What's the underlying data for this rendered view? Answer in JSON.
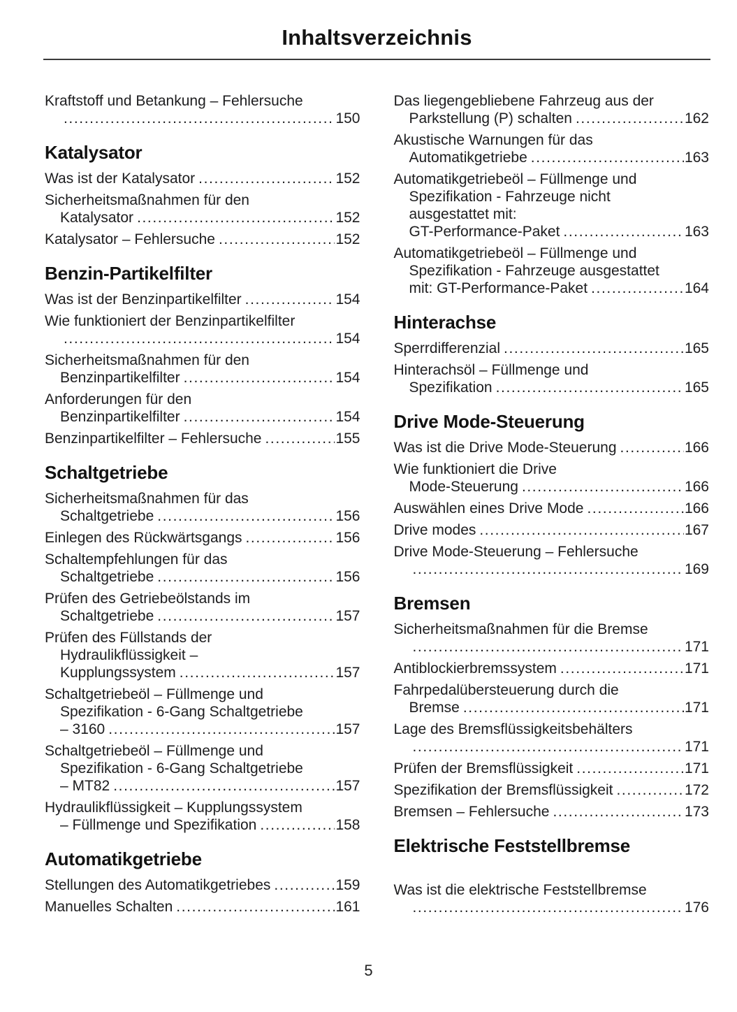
{
  "page": {
    "title": "Inhaltsverzeichnis",
    "footer_page_number": "5"
  },
  "colors": {
    "text": "#1d1d1f",
    "rule": "#3a3a3a"
  },
  "toc": {
    "columns": [
      {
        "blocks": [
          {
            "type": "entry",
            "lines": [
              "Kraftstoff und Betankung – Fehlersuche",
              ""
            ],
            "page": "150"
          },
          {
            "type": "header",
            "text": "Katalysator"
          },
          {
            "type": "entry",
            "lines": [
              "Was ist der Katalysator"
            ],
            "page": "152"
          },
          {
            "type": "entry",
            "lines": [
              "Sicherheitsmaßnahmen für den",
              "Katalysator"
            ],
            "page": "152"
          },
          {
            "type": "entry",
            "lines": [
              "Katalysator – Fehlersuche"
            ],
            "page": "152"
          },
          {
            "type": "header",
            "text": "Benzin-Partikelfilter"
          },
          {
            "type": "entry",
            "lines": [
              "Was ist der Benzinpartikelfilter"
            ],
            "page": "154"
          },
          {
            "type": "entry",
            "lines": [
              "Wie funktioniert der Benzinpartikelfilter",
              ""
            ],
            "page": "154"
          },
          {
            "type": "entry",
            "lines": [
              "Sicherheitsmaßnahmen für den",
              "Benzinpartikelfilter"
            ],
            "page": "154"
          },
          {
            "type": "entry",
            "lines": [
              "Anforderungen für den",
              "Benzinpartikelfilter"
            ],
            "page": "154"
          },
          {
            "type": "entry",
            "lines": [
              "Benzinpartikelfilter – Fehlersuche"
            ],
            "page": "155"
          },
          {
            "type": "header",
            "text": "Schaltgetriebe"
          },
          {
            "type": "entry",
            "lines": [
              "Sicherheitsmaßnahmen für das",
              "Schaltgetriebe"
            ],
            "page": "156"
          },
          {
            "type": "entry",
            "lines": [
              "Einlegen des Rückwärtsgangs"
            ],
            "page": "156"
          },
          {
            "type": "entry",
            "lines": [
              "Schaltempfehlungen für das",
              "Schaltgetriebe"
            ],
            "page": "156"
          },
          {
            "type": "entry",
            "lines": [
              "Prüfen des Getriebeölstands im",
              "Schaltgetriebe"
            ],
            "page": "157"
          },
          {
            "type": "entry",
            "lines": [
              "Prüfen des Füllstands der",
              "Hydraulikflüssigkeit –",
              "Kupplungssystem"
            ],
            "page": "157"
          },
          {
            "type": "entry",
            "lines": [
              "Schaltgetriebeöl – Füllmenge und",
              "Spezifikation - 6-Gang Schaltgetriebe",
              "– 3160"
            ],
            "page": "157"
          },
          {
            "type": "entry",
            "lines": [
              "Schaltgetriebeöl – Füllmenge und",
              "Spezifikation - 6-Gang Schaltgetriebe",
              "– MT82"
            ],
            "page": "157"
          },
          {
            "type": "entry",
            "lines": [
              "Hydraulikflüssigkeit – Kupplungssystem",
              "– Füllmenge und Spezifikation"
            ],
            "page": "158"
          },
          {
            "type": "header",
            "text": "Automatikgetriebe"
          },
          {
            "type": "entry",
            "lines": [
              "Stellungen des Automatikgetriebes"
            ],
            "page": "159"
          },
          {
            "type": "entry",
            "lines": [
              "Manuelles Schalten"
            ],
            "page": "161"
          }
        ]
      },
      {
        "blocks": [
          {
            "type": "entry",
            "lines": [
              "Das liegengebliebene Fahrzeug aus der",
              "Parkstellung (P) schalten"
            ],
            "page": "162"
          },
          {
            "type": "entry",
            "lines": [
              "Akustische Warnungen für das",
              "Automatikgetriebe"
            ],
            "page": "163"
          },
          {
            "type": "entry",
            "lines": [
              "Automatikgetriebeöl – Füllmenge und",
              "Spezifikation - Fahrzeuge nicht",
              "ausgestattet mit:",
              "GT-Performance-Paket"
            ],
            "page": "163"
          },
          {
            "type": "entry",
            "lines": [
              "Automatikgetriebeöl – Füllmenge und",
              "Spezifikation - Fahrzeuge ausgestattet",
              "mit: GT-Performance-Paket"
            ],
            "page": "164"
          },
          {
            "type": "header",
            "text": "Hinterachse"
          },
          {
            "type": "entry",
            "lines": [
              "Sperrdifferenzial"
            ],
            "page": "165"
          },
          {
            "type": "entry",
            "lines": [
              "Hinterachsöl – Füllmenge und",
              "Spezifikation"
            ],
            "page": "165"
          },
          {
            "type": "header",
            "text": "Drive Mode-Steuerung"
          },
          {
            "type": "entry",
            "lines": [
              "Was ist die Drive Mode-Steuerung"
            ],
            "page": "166"
          },
          {
            "type": "entry",
            "lines": [
              "Wie funktioniert die Drive",
              "Mode-Steuerung"
            ],
            "page": "166"
          },
          {
            "type": "entry",
            "lines": [
              "Auswählen eines Drive Mode"
            ],
            "page": "166"
          },
          {
            "type": "entry",
            "lines": [
              "Drive modes"
            ],
            "page": "167"
          },
          {
            "type": "entry",
            "lines": [
              "Drive Mode-Steuerung – Fehlersuche",
              ""
            ],
            "page": "169"
          },
          {
            "type": "header",
            "text": "Bremsen"
          },
          {
            "type": "entry",
            "lines": [
              "Sicherheitsmaßnahmen für die Bremse",
              ""
            ],
            "page": "171"
          },
          {
            "type": "entry",
            "lines": [
              "Antiblockierbremssystem"
            ],
            "page": "171"
          },
          {
            "type": "entry",
            "lines": [
              "Fahrpedalübersteuerung durch die",
              "Bremse"
            ],
            "page": "171"
          },
          {
            "type": "entry",
            "lines": [
              "Lage des Bremsflüssigkeitsbehälters",
              ""
            ],
            "page": "171"
          },
          {
            "type": "entry",
            "lines": [
              "Prüfen der Bremsflüssigkeit"
            ],
            "page": "171"
          },
          {
            "type": "entry",
            "lines": [
              "Spezifikation der Bremsflüssigkeit"
            ],
            "page": "172"
          },
          {
            "type": "entry",
            "lines": [
              "Bremsen – Fehlersuche"
            ],
            "page": "173"
          },
          {
            "type": "header",
            "text": "Elektrische Feststellbremse"
          },
          {
            "type": "gap"
          },
          {
            "type": "entry",
            "lines": [
              "Was ist die elektrische Feststellbremse",
              ""
            ],
            "page": "176"
          }
        ]
      }
    ]
  }
}
